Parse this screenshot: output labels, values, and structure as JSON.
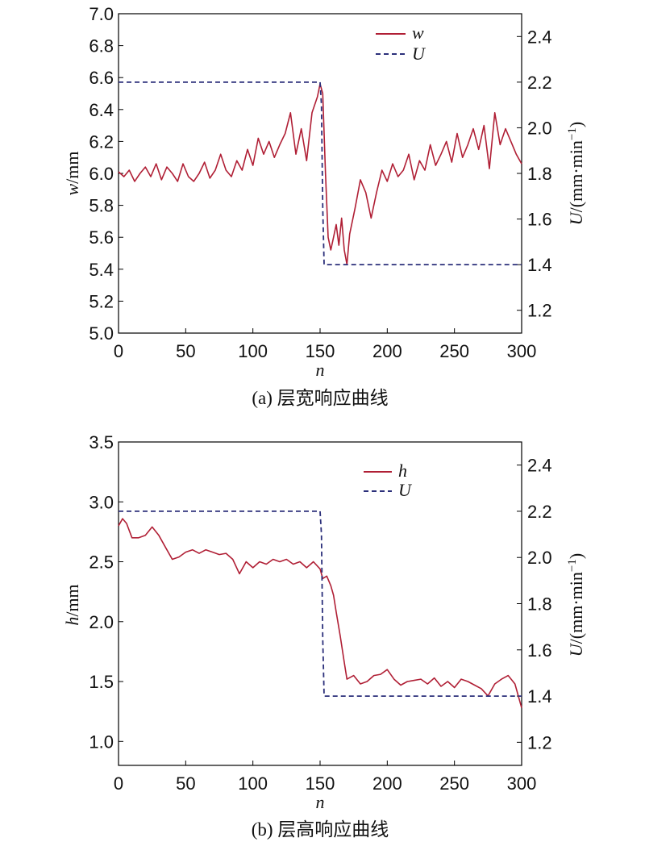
{
  "colors": {
    "w_line": "#b01f35",
    "h_line": "#b01f35",
    "U_line": "#2b2f7a",
    "axis": "#000000"
  },
  "chart_data": [
    {
      "type": "line",
      "caption": "(a) 层宽响应曲线",
      "xlabel": "n",
      "ylabel_var": "w",
      "ylabel_unit": "/mm",
      "y2label_var": "U",
      "y2label_unit": "/(mm·min",
      "y2label_exp": "−1",
      "y2label_close": ")",
      "xlim": [
        0,
        300
      ],
      "ylim": [
        5.0,
        7.0
      ],
      "y2lim": [
        1.1,
        2.5
      ],
      "xticks": [
        "0",
        "50",
        "100",
        "150",
        "200",
        "250",
        "300"
      ],
      "yticks": [
        "5.0",
        "5.2",
        "5.4",
        "5.6",
        "5.8",
        "6.0",
        "6.2",
        "6.4",
        "6.6",
        "6.8",
        "7.0"
      ],
      "y2ticks": [
        "1.2",
        "1.4",
        "1.6",
        "1.8",
        "2.0",
        "2.2",
        "2.4"
      ],
      "legend": [
        "w",
        "U"
      ],
      "legend_position": "top-right",
      "series": [
        {
          "name": "w",
          "axis": "left",
          "style": "solid",
          "x": [
            0,
            4,
            8,
            12,
            16,
            20,
            24,
            28,
            32,
            36,
            40,
            44,
            48,
            52,
            56,
            60,
            64,
            68,
            72,
            76,
            80,
            84,
            88,
            92,
            96,
            100,
            104,
            108,
            112,
            116,
            120,
            124,
            128,
            132,
            136,
            140,
            144,
            148,
            150,
            152,
            154,
            156,
            158,
            160,
            162,
            164,
            166,
            168,
            170,
            172,
            176,
            180,
            184,
            188,
            192,
            196,
            200,
            204,
            208,
            212,
            216,
            220,
            224,
            228,
            232,
            236,
            240,
            244,
            248,
            252,
            256,
            260,
            264,
            268,
            272,
            276,
            280,
            284,
            288,
            292,
            296,
            300
          ],
          "y": [
            6.01,
            5.98,
            6.02,
            5.95,
            6.0,
            6.04,
            5.98,
            6.06,
            5.96,
            6.04,
            6.0,
            5.95,
            6.06,
            5.98,
            5.95,
            6.0,
            6.07,
            5.97,
            6.02,
            6.12,
            6.02,
            5.98,
            6.08,
            6.02,
            6.15,
            6.05,
            6.22,
            6.12,
            6.2,
            6.1,
            6.18,
            6.25,
            6.38,
            6.12,
            6.28,
            6.08,
            6.38,
            6.48,
            6.56,
            6.5,
            6.0,
            5.6,
            5.52,
            5.6,
            5.68,
            5.55,
            5.72,
            5.52,
            5.43,
            5.62,
            5.78,
            5.96,
            5.88,
            5.72,
            5.88,
            6.02,
            5.95,
            6.06,
            5.98,
            6.02,
            6.12,
            5.96,
            6.08,
            6.02,
            6.18,
            6.05,
            6.12,
            6.2,
            6.07,
            6.25,
            6.1,
            6.18,
            6.28,
            6.15,
            6.3,
            6.03,
            6.38,
            6.18,
            6.28,
            6.2,
            6.12,
            6.06
          ]
        },
        {
          "name": "U",
          "axis": "right",
          "style": "dashed",
          "x": [
            0,
            150,
            151,
            152,
            153,
            300
          ],
          "y": [
            2.2,
            2.2,
            2.1,
            1.65,
            1.4,
            1.4
          ]
        }
      ]
    },
    {
      "type": "line",
      "caption": "(b) 层高响应曲线",
      "xlabel": "n",
      "ylabel_var": "h",
      "ylabel_unit": "/mm",
      "y2label_var": "U",
      "y2label_unit": "/(mm·min",
      "y2label_exp": "−1",
      "y2label_close": ")",
      "xlim": [
        0,
        300
      ],
      "ylim": [
        0.8,
        3.5
      ],
      "y2lim": [
        1.1,
        2.5
      ],
      "xticks": [
        "0",
        "50",
        "100",
        "150",
        "200",
        "250",
        "300"
      ],
      "yticks": [
        "1.0",
        "1.5",
        "2.0",
        "2.5",
        "3.0",
        "3.5"
      ],
      "y2ticks": [
        "1.2",
        "1.4",
        "1.6",
        "1.8",
        "2.0",
        "2.2",
        "2.4"
      ],
      "legend": [
        "h",
        "U"
      ],
      "legend_position": "top-right",
      "series": [
        {
          "name": "h",
          "axis": "left",
          "style": "solid",
          "x": [
            0,
            3,
            6,
            10,
            15,
            20,
            25,
            30,
            35,
            40,
            45,
            50,
            55,
            60,
            65,
            70,
            75,
            80,
            85,
            90,
            95,
            100,
            105,
            110,
            115,
            120,
            125,
            130,
            135,
            140,
            145,
            150,
            152,
            155,
            158,
            160,
            162,
            165,
            168,
            170,
            175,
            180,
            185,
            190,
            195,
            200,
            205,
            210,
            215,
            220,
            225,
            230,
            235,
            240,
            245,
            250,
            255,
            260,
            265,
            270,
            275,
            280,
            285,
            290,
            295,
            300
          ],
          "y": [
            2.8,
            2.86,
            2.82,
            2.7,
            2.7,
            2.72,
            2.79,
            2.72,
            2.62,
            2.52,
            2.54,
            2.58,
            2.6,
            2.57,
            2.6,
            2.58,
            2.56,
            2.57,
            2.52,
            2.4,
            2.5,
            2.45,
            2.5,
            2.48,
            2.52,
            2.5,
            2.52,
            2.48,
            2.5,
            2.45,
            2.5,
            2.44,
            2.36,
            2.38,
            2.3,
            2.22,
            2.08,
            1.88,
            1.66,
            1.52,
            1.55,
            1.48,
            1.5,
            1.55,
            1.56,
            1.6,
            1.52,
            1.47,
            1.5,
            1.51,
            1.52,
            1.48,
            1.53,
            1.46,
            1.5,
            1.45,
            1.52,
            1.5,
            1.47,
            1.44,
            1.38,
            1.48,
            1.52,
            1.55,
            1.48,
            1.28
          ]
        },
        {
          "name": "U",
          "axis": "right",
          "style": "dashed",
          "x": [
            0,
            150,
            151,
            152,
            153,
            300
          ],
          "y": [
            2.2,
            2.2,
            2.1,
            1.65,
            1.4,
            1.4
          ]
        }
      ]
    }
  ]
}
